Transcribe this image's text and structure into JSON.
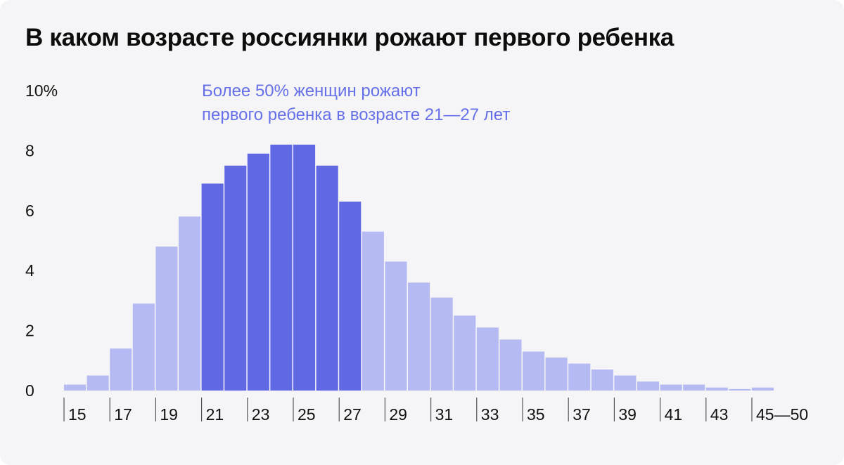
{
  "title": "В каком возрасте россиянки рожают первого ребенка",
  "annotation": {
    "line1": "Более 50% женщин рожают",
    "line2": "первого ребенка в возрасте 21—27 лет",
    "color": "#6670e8"
  },
  "colors": {
    "highlight": "#6068e4",
    "normal": "#b6baf2",
    "tick": "#555555",
    "text": "#111111"
  },
  "chart_data": {
    "type": "bar",
    "title": "В каком возрасте россиянки рожают первого ребенка",
    "xlabel": "",
    "ylabel": "",
    "ylim": [
      0,
      10
    ],
    "y_ticks": [
      "10%",
      "8",
      "6",
      "4",
      "2",
      "0"
    ],
    "y_tick_values": [
      10,
      8,
      6,
      4,
      2,
      0
    ],
    "categories": [
      "15",
      "16",
      "17",
      "18",
      "19",
      "20",
      "21",
      "22",
      "23",
      "24",
      "25",
      "26",
      "27",
      "28",
      "29",
      "30",
      "31",
      "32",
      "33",
      "34",
      "35",
      "36",
      "37",
      "38",
      "39",
      "40",
      "41",
      "42",
      "43",
      "44",
      "45—50"
    ],
    "x_tick_labels": [
      "15",
      "17",
      "19",
      "21",
      "23",
      "25",
      "27",
      "29",
      "31",
      "33",
      "35",
      "37",
      "39",
      "41",
      "43",
      "45—50"
    ],
    "values": [
      0.2,
      0.5,
      1.4,
      2.9,
      4.8,
      5.8,
      6.9,
      7.5,
      7.9,
      8.2,
      8.2,
      7.5,
      6.3,
      5.3,
      4.3,
      3.6,
      3.1,
      2.5,
      2.1,
      1.7,
      1.3,
      1.1,
      0.9,
      0.7,
      0.5,
      0.3,
      0.2,
      0.2,
      0.1,
      0.05,
      0.1
    ],
    "highlight_range": [
      "21",
      "27"
    ],
    "grid": false,
    "legend": "none"
  }
}
